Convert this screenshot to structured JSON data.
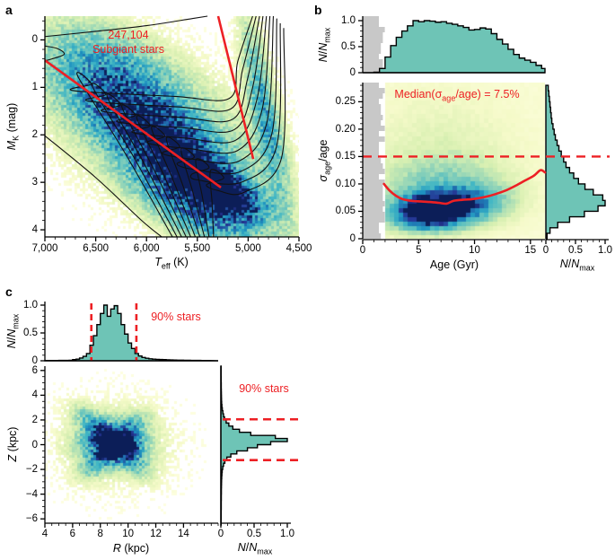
{
  "figure": {
    "panel_a_label": "a",
    "panel_b_label": "b",
    "panel_c_label": "c"
  },
  "colors": {
    "teal": "#6ec4b6",
    "red": "#ed2024",
    "gray_band": "#c8c8c8",
    "black": "#000000",
    "colormap": [
      [
        0.0,
        "#ffffe5"
      ],
      [
        0.1,
        "#f5fac9"
      ],
      [
        0.22,
        "#d9f0b2"
      ],
      [
        0.35,
        "#a8ddb5"
      ],
      [
        0.48,
        "#6ec6bd"
      ],
      [
        0.6,
        "#41b6c4"
      ],
      [
        0.72,
        "#1d91c0"
      ],
      [
        0.84,
        "#2161a8"
      ],
      [
        0.93,
        "#253494"
      ],
      [
        1.0,
        "#0c1e58"
      ]
    ]
  },
  "chart_data": [
    {
      "id": "a",
      "type": "heatmap",
      "description": "Colour–magnitude diagram density of subgiant stars with contour curves and red selection boundary lines",
      "xlabel": {
        "italic": "T",
        "sub": "eff",
        "rest": " (K)"
      },
      "ylabel": {
        "italic": "M",
        "sub": "K",
        "rest": " (mag)"
      },
      "xlim": [
        7000,
        4500
      ],
      "ylim": [
        -0.5,
        4.15
      ],
      "x_ticks": {
        "values": [
          7000,
          6500,
          6000,
          5500,
          5000,
          4500
        ],
        "labels": [
          "7,000",
          "6,500",
          "6,000",
          "5,500",
          "5,000",
          "4,500"
        ],
        "minor_step": 100
      },
      "y_ticks": {
        "values": [
          0,
          1,
          2,
          3,
          4
        ],
        "labels": [
          "0",
          "1",
          "2",
          "3",
          "4"
        ],
        "minor_step": 0.2
      },
      "annotation": {
        "line1": "247,104",
        "line2": "Subgiant stars"
      },
      "red_lines": [
        [
          [
            7000,
            0.43
          ],
          [
            5268,
            3.11
          ]
        ],
        [
          [
            5295,
            -0.5
          ],
          [
            4950,
            2.51
          ]
        ]
      ],
      "contours": [
        [
          [
            7000,
            -0.07
          ],
          [
            6500,
            -0.18
          ],
          [
            6000,
            -0.3
          ],
          [
            5550,
            -0.45
          ],
          [
            5400,
            -0.5
          ]
        ],
        [
          [
            7000,
            0.13
          ],
          [
            6880,
            0.18
          ],
          [
            6810,
            0.3
          ],
          [
            6930,
            0.4
          ],
          [
            7000,
            0.44
          ]
        ],
        [
          [
            7000,
            2.02
          ],
          [
            6500,
            2.9
          ],
          [
            6050,
            3.8
          ],
          [
            5850,
            4.15
          ]
        ],
        [
          [
            5745,
            4.15
          ],
          [
            6210,
            2.39
          ],
          [
            6675,
            0.77
          ],
          [
            6545,
            0.93
          ],
          [
            6715,
            1.07
          ],
          [
            5722,
            1.19
          ],
          [
            5184,
            1.23
          ],
          [
            5102,
            0.45
          ],
          [
            4956,
            -0.5
          ]
        ],
        [
          [
            5700,
            4.15
          ],
          [
            6115,
            2.51
          ],
          [
            6530,
            0.99
          ],
          [
            6400,
            1.15
          ],
          [
            6570,
            1.29
          ],
          [
            5694,
            1.41
          ],
          [
            5168,
            1.45
          ],
          [
            5054,
            0.62
          ],
          [
            4922,
            -0.5
          ]
        ],
        [
          [
            5655,
            4.15
          ],
          [
            6020,
            2.62
          ],
          [
            6385,
            1.21
          ],
          [
            6255,
            1.37
          ],
          [
            6425,
            1.51
          ],
          [
            5666,
            1.63
          ],
          [
            5152,
            1.67
          ],
          [
            5006,
            0.82
          ],
          [
            4888,
            -0.5
          ]
        ],
        [
          [
            5610,
            4.15
          ],
          [
            5925,
            2.74
          ],
          [
            6240,
            1.43
          ],
          [
            6110,
            1.59
          ],
          [
            6280,
            1.73
          ],
          [
            5638,
            1.85
          ],
          [
            5136,
            1.89
          ],
          [
            4958,
            1.02
          ],
          [
            4854,
            -0.5
          ]
        ],
        [
          [
            5565,
            4.15
          ],
          [
            5830,
            2.85
          ],
          [
            6095,
            1.65
          ],
          [
            5965,
            1.81
          ],
          [
            6135,
            1.95
          ],
          [
            5610,
            2.07
          ],
          [
            5120,
            2.11
          ],
          [
            4910,
            1.22
          ],
          [
            4820,
            -0.5
          ]
        ],
        [
          [
            5520,
            4.15
          ],
          [
            5735,
            2.97
          ],
          [
            5950,
            1.87
          ],
          [
            5820,
            2.03
          ],
          [
            5990,
            2.17
          ],
          [
            5582,
            2.29
          ],
          [
            5104,
            2.33
          ],
          [
            4862,
            1.46
          ],
          [
            4786,
            -0.5
          ]
        ],
        [
          [
            5475,
            4.15
          ],
          [
            5640,
            3.08
          ],
          [
            5805,
            2.09
          ],
          [
            5675,
            2.25
          ],
          [
            5845,
            2.39
          ],
          [
            5554,
            2.51
          ],
          [
            5088,
            2.55
          ],
          [
            4814,
            1.72
          ],
          [
            4752,
            -0.5
          ]
        ],
        [
          [
            5430,
            4.15
          ],
          [
            5545,
            3.2
          ],
          [
            5660,
            2.31
          ],
          [
            5530,
            2.47
          ],
          [
            5700,
            2.61
          ],
          [
            5526,
            2.73
          ],
          [
            5072,
            2.77
          ],
          [
            4766,
            1.97
          ],
          [
            4718,
            -0.45
          ]
        ],
        [
          [
            5385,
            4.15
          ],
          [
            5450,
            3.31
          ],
          [
            5515,
            2.53
          ],
          [
            5385,
            2.69
          ],
          [
            5555,
            2.83
          ],
          [
            5498,
            2.95
          ],
          [
            5056,
            2.99
          ],
          [
            4718,
            2.22
          ],
          [
            4684,
            -0.35
          ]
        ],
        [
          [
            5340,
            4.15
          ],
          [
            5355,
            3.43
          ],
          [
            5370,
            2.75
          ],
          [
            5240,
            2.91
          ],
          [
            5410,
            3.05
          ],
          [
            5300,
            3.17
          ],
          [
            5040,
            3.21
          ],
          [
            4670,
            2.47
          ],
          [
            4650,
            -0.25
          ]
        ]
      ],
      "density": {
        "cut": 0.035,
        "base": 0,
        "gaussians": [
          {
            "cx": 0.38,
            "cy": 0.46,
            "rot": 39,
            "sl": 0.34,
            "ss": 0.16,
            "amp": 0.5
          },
          {
            "cx": 0.52,
            "cy": 0.63,
            "rot": 39,
            "sl": 0.22,
            "ss": 0.09,
            "amp": 0.6
          },
          {
            "cx": 0.7,
            "cy": 0.8,
            "rot": 33,
            "sl": 0.13,
            "ss": 0.055,
            "amp": 0.95
          },
          {
            "cx": 0.6,
            "cy": 0.9,
            "rot": 36,
            "sl": 0.22,
            "ss": 0.08,
            "amp": 0.5
          },
          {
            "cx": 0.86,
            "cy": 0.4,
            "rot": 80,
            "sl": 0.3,
            "ss": 0.038,
            "amp": 0.55
          },
          {
            "cx": 0.27,
            "cy": 0.25,
            "rot": 39,
            "sl": 0.22,
            "ss": 0.13,
            "amp": 0.28
          },
          {
            "cx": 0.47,
            "cy": 0.55,
            "rot": 39,
            "sl": 0.55,
            "ss": 0.28,
            "amp": 0.14
          }
        ]
      }
    },
    {
      "id": "b",
      "type": "heatmap+histograms",
      "description": "Relative age uncertainty vs age with marginal histograms, excluded young-age gray band, median curve and 15% dashed threshold",
      "xlabel": "Age (Gyr)",
      "ylabel": {
        "sigma": "σ",
        "sub": "age",
        "rest": "/age"
      },
      "hist_axis_label": {
        "num": "N",
        "slash": "/",
        "den": "N",
        "sub": "max"
      },
      "xlim": [
        0,
        16.3
      ],
      "ylim": [
        0,
        0.285
      ],
      "x_ticks": {
        "values": [
          0,
          5,
          10,
          15
        ],
        "labels": [
          "0",
          "5",
          "10",
          "15"
        ],
        "minor_step": 1
      },
      "y_ticks": {
        "values": [
          0,
          0.05,
          0.1,
          0.15,
          0.2,
          0.25
        ],
        "labels": [
          "0",
          "0.05",
          "0.10",
          "0.15",
          "0.20",
          "0.25"
        ],
        "minor_step": 0.01
      },
      "hist_ticks": {
        "values": [
          0,
          0.5,
          1.0
        ],
        "labels": [
          "0",
          "0.5",
          "1.0"
        ],
        "minor_step": 0.1
      },
      "annotation": {
        "pre": "Median(σ",
        "sub": "age",
        "post": "/age) = 7.5%"
      },
      "dashed_threshold": 0.15,
      "gray_band_age_max": 1.85,
      "top_hist": {
        "bin_start": 0,
        "bin_width": 0.5,
        "values": [
          0,
          0,
          0.01,
          0.08,
          0.3,
          0.52,
          0.68,
          0.8,
          0.9,
          1.0,
          0.98,
          1.0,
          0.99,
          0.97,
          0.98,
          0.95,
          0.93,
          0.9,
          0.87,
          0.82,
          0.83,
          0.86,
          0.84,
          0.75,
          0.64,
          0.55,
          0.45,
          0.35,
          0.28,
          0.24,
          0.2,
          0.14,
          0.08
        ]
      },
      "right_hist": {
        "bin_start": 0,
        "bin_width": 0.01,
        "values": [
          0.02,
          0.07,
          0.2,
          0.4,
          0.65,
          0.88,
          1.0,
          0.96,
          0.8,
          0.66,
          0.55,
          0.47,
          0.4,
          0.34,
          0.3,
          0.26,
          0.22,
          0.19,
          0.16,
          0.14,
          0.12,
          0.1,
          0.09,
          0.08,
          0.07,
          0.06,
          0.05,
          0.04
        ]
      },
      "median_curve": [
        [
          1.9,
          0.1
        ],
        [
          2.4,
          0.088
        ],
        [
          3.0,
          0.078
        ],
        [
          3.6,
          0.072
        ],
        [
          4.4,
          0.069
        ],
        [
          5.2,
          0.068
        ],
        [
          6.0,
          0.067
        ],
        [
          6.8,
          0.0655
        ],
        [
          7.5,
          0.064
        ],
        [
          8.1,
          0.069
        ],
        [
          8.9,
          0.071
        ],
        [
          9.7,
          0.072
        ],
        [
          10.5,
          0.0745
        ],
        [
          11.3,
          0.078
        ],
        [
          12.1,
          0.083
        ],
        [
          12.9,
          0.089
        ],
        [
          13.7,
          0.097
        ],
        [
          14.5,
          0.106
        ],
        [
          15.3,
          0.115
        ],
        [
          15.9,
          0.125
        ],
        [
          16.3,
          0.121
        ]
      ],
      "density": {
        "cut": 0.03,
        "base": 0.07,
        "gaussians": [
          {
            "cx": 0.356,
            "cy": 0.835,
            "rot": -3,
            "sl": 0.14,
            "ss": 0.075,
            "amp": 1.0
          },
          {
            "cx": 0.571,
            "cy": 0.779,
            "rot": -4,
            "sl": 0.16,
            "ss": 0.08,
            "amp": 0.5
          },
          {
            "cx": 0.429,
            "cy": 0.684,
            "rot": 0,
            "sl": 0.24,
            "ss": 0.14,
            "amp": 0.3
          },
          {
            "cx": 0.429,
            "cy": 0.439,
            "rot": 0,
            "sl": 0.3,
            "ss": 0.28,
            "amp": 0.12
          }
        ]
      }
    },
    {
      "id": "c",
      "type": "heatmap+histograms",
      "description": "Galactocentric R vs Z density with marginal histograms and 90% containment dashed markers",
      "xlabel": {
        "italic": "R",
        "rest": " (kpc)"
      },
      "ylabel": {
        "italic": "Z",
        "rest": " (kpc)"
      },
      "hist_axis_label": {
        "num": "N",
        "slash": "/",
        "den": "N",
        "sub": "max"
      },
      "xlim": [
        4,
        16.5
      ],
      "ylim": [
        -6.35,
        6.35
      ],
      "x_ticks": {
        "values": [
          4,
          6,
          8,
          10,
          12,
          14
        ],
        "labels": [
          "4",
          "6",
          "8",
          "10",
          "12",
          "14"
        ],
        "minor_step": 0.5
      },
      "y_ticks": {
        "values": [
          -6,
          -4,
          -2,
          0,
          2,
          4,
          6
        ],
        "labels": [
          "−6",
          "−4",
          "−2",
          "0",
          "2",
          "4",
          "6"
        ],
        "minor_step": 0.5
      },
      "hist_ticks": {
        "values": [
          0,
          0.5,
          1.0
        ],
        "labels": [
          "0",
          "0.5",
          "1.0"
        ],
        "minor_step": 0.1
      },
      "annotation_top": "90% stars",
      "annotation_right": "90% stars",
      "dashed_R": [
        7.35,
        10.6
      ],
      "dashed_Z": [
        2.05,
        -1.25
      ],
      "top_hist": {
        "bin_start": 4,
        "bin_width": 0.25,
        "values": [
          0.004,
          0.004,
          0.005,
          0.005,
          0.006,
          0.006,
          0.007,
          0.008,
          0.02,
          0.03,
          0.05,
          0.08,
          0.13,
          0.28,
          0.45,
          0.65,
          0.85,
          1.0,
          0.8,
          0.93,
          0.99,
          0.85,
          0.65,
          0.48,
          0.32,
          0.22,
          0.13,
          0.085,
          0.06,
          0.045,
          0.035,
          0.03,
          0.025,
          0.022,
          0.02,
          0.017,
          0.015,
          0.013,
          0.011,
          0.01,
          0.009,
          0.008,
          0.007,
          0.006,
          0.006,
          0.005,
          0.005
        ]
      },
      "right_hist": {
        "bin_start": -6.5,
        "bin_width": 0.25,
        "values": [
          0.004,
          0.004,
          0.005,
          0.005,
          0.005,
          0.006,
          0.006,
          0.006,
          0.007,
          0.007,
          0.008,
          0.008,
          0.009,
          0.01,
          0.011,
          0.013,
          0.016,
          0.02,
          0.028,
          0.04,
          0.06,
          0.09,
          0.15,
          0.24,
          0.4,
          0.55,
          0.75,
          1.0,
          0.82,
          0.45,
          0.28,
          0.18,
          0.12,
          0.08,
          0.055,
          0.04,
          0.03,
          0.022,
          0.016,
          0.012,
          0.01,
          0.009,
          0.008,
          0.007,
          0.006,
          0.006,
          0.005,
          0.005,
          0.004,
          0.004,
          0.004,
          0.004
        ]
      },
      "density": {
        "cut": 0.035,
        "base": 0,
        "gaussians": [
          {
            "cx": 0.408,
            "cy": 0.5,
            "rot": 0,
            "sl": 0.075,
            "ss": 0.048,
            "amp": 0.95
          },
          {
            "cx": 0.348,
            "cy": 0.508,
            "rot": 0,
            "sl": 0.04,
            "ss": 0.035,
            "amp": 0.75
          },
          {
            "cx": 0.384,
            "cy": 0.484,
            "rot": 0,
            "sl": 0.13,
            "ss": 0.09,
            "amp": 0.5
          },
          {
            "cx": 0.28,
            "cy": 0.366,
            "rot": 45,
            "sl": 0.12,
            "ss": 0.05,
            "amp": 0.35
          },
          {
            "cx": 0.496,
            "cy": 0.39,
            "rot": -45,
            "sl": 0.1,
            "ss": 0.05,
            "amp": 0.28
          },
          {
            "cx": 0.296,
            "cy": 0.626,
            "rot": -45,
            "sl": 0.1,
            "ss": 0.05,
            "amp": 0.28
          },
          {
            "cx": 0.504,
            "cy": 0.602,
            "rot": 45,
            "sl": 0.11,
            "ss": 0.05,
            "amp": 0.3
          },
          {
            "cx": 0.4,
            "cy": 0.5,
            "rot": 0,
            "sl": 0.2,
            "ss": 0.16,
            "amp": 0.22
          },
          {
            "cx": 0.42,
            "cy": 0.5,
            "rot": 0,
            "sl": 0.36,
            "ss": 0.33,
            "amp": 0.08
          },
          {
            "cx": 0.3,
            "cy": 0.516,
            "rot": 0,
            "sl": 0.022,
            "ss": 0.018,
            "amp": -0.7
          }
        ]
      }
    }
  ]
}
